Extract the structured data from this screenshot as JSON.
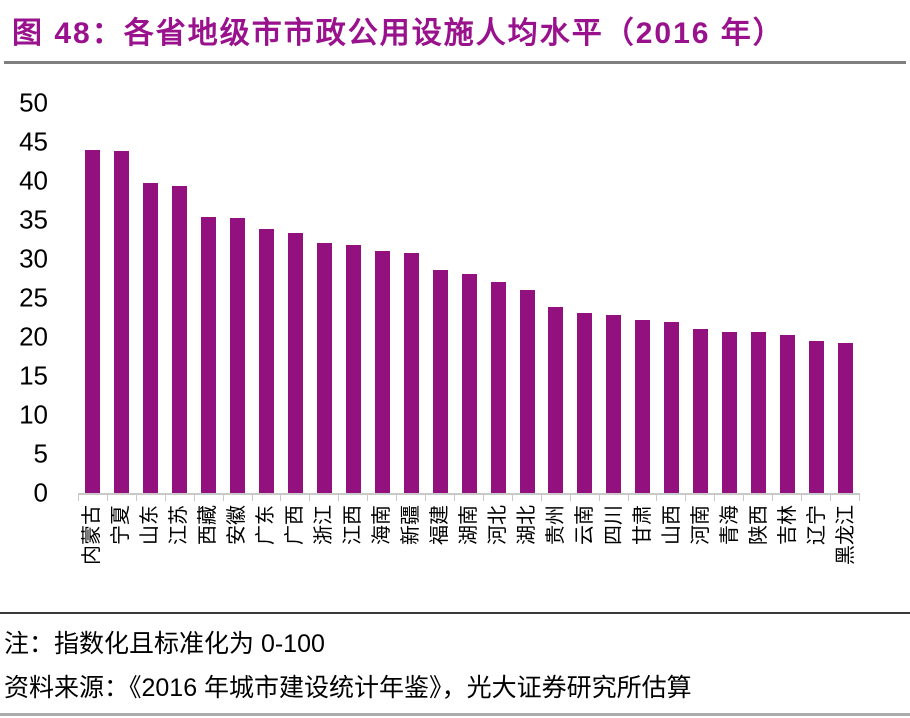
{
  "figure": {
    "title": "图 48：各省地级市市政公用设施人均水平（2016 年）",
    "note": "注：指数化且标准化为 0-100",
    "source": "资料来源：《2016 年城市建设统计年鉴》，光大证券研究所估算"
  },
  "colors": {
    "title": "#99118C",
    "bar": "#93117E",
    "axis": "#C9C9C9",
    "title_rule": "#7F7F7F",
    "note_rule": "#3A3A3A",
    "bottom_rule": "#ABABAB",
    "text": "#000000"
  },
  "chart_data": {
    "type": "bar",
    "title": "各省地级市市政公用设施人均水平（2016 年）",
    "categories": [
      "内蒙古",
      "宁夏",
      "山东",
      "江苏",
      "西藏",
      "安徽",
      "广东",
      "广西",
      "浙江",
      "江西",
      "海南",
      "新疆",
      "福建",
      "湖南",
      "河北",
      "湖北",
      "贵州",
      "云南",
      "四川",
      "甘肃",
      "山西",
      "河南",
      "青海",
      "陕西",
      "吉林",
      "辽宁",
      "黑龙江"
    ],
    "values": [
      44.0,
      43.8,
      39.8,
      39.4,
      35.4,
      35.2,
      33.8,
      33.4,
      32.1,
      31.8,
      31.0,
      30.8,
      28.6,
      28.1,
      27.1,
      26.0,
      23.9,
      23.1,
      22.8,
      22.2,
      21.9,
      21.0,
      20.7,
      20.6,
      20.3,
      19.5,
      19.2
    ],
    "xlabel": "",
    "ylabel": "",
    "ylim": [
      0,
      50
    ],
    "ytick_step": 5,
    "yticks": [
      "50",
      "45",
      "40",
      "35",
      "30",
      "25",
      "20",
      "15",
      "10",
      "5",
      "0"
    ],
    "grid": false,
    "legend": false,
    "bar_color": "#93117E"
  }
}
